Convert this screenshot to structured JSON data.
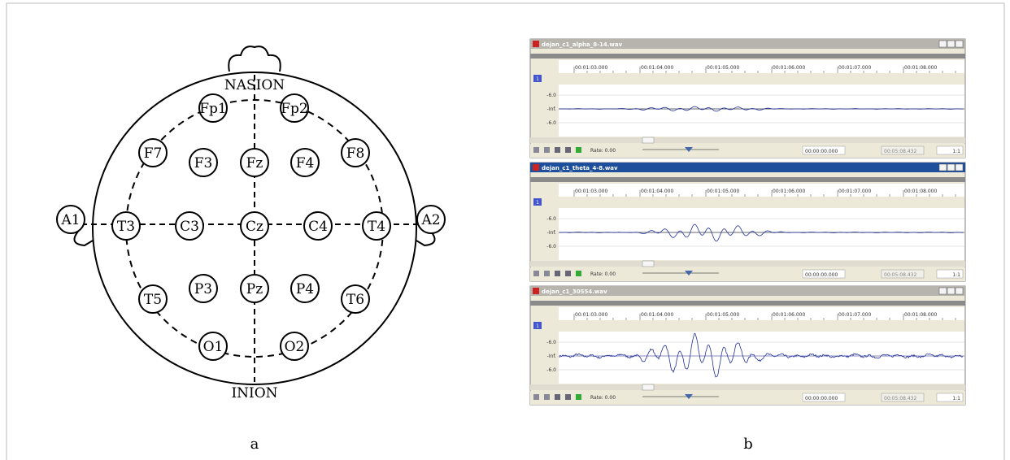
{
  "diagram": {
    "landmarks": {
      "top": "NASION",
      "bottom": "INION"
    },
    "electrodes": [
      "Fp1",
      "Fp2",
      "F7",
      "F3",
      "Fz",
      "F4",
      "F8",
      "A1",
      "T3",
      "C3",
      "Cz",
      "C4",
      "T4",
      "A2",
      "T5",
      "P3",
      "Pz",
      "P4",
      "T6",
      "O1",
      "O2"
    ],
    "caption": "a"
  },
  "screenshot": {
    "caption": "b",
    "windows": [
      {
        "title": "dejan_c1_alpha_8-14.wav",
        "track": "1",
        "time_labels": [
          "00:01:03.000",
          "00:01:04.000",
          "00:01:05.000",
          "00:01:06.000",
          "00:01:07.000",
          "00:01:08.000"
        ],
        "y_labels": [
          "-6.0",
          "-Inf.",
          "-6.0"
        ],
        "rate": "Rate: 0.00",
        "position": "00:00:00.000",
        "length": "00:05:08.432",
        "zoom": "1:1"
      },
      {
        "title": "dejan_c1_theta_4-8.wav",
        "track": "1",
        "time_labels": [
          "00:01:03.000",
          "00:01:04.000",
          "00:01:05.000",
          "00:01:06.000",
          "00:01:07.000",
          "00:01:08.000"
        ],
        "y_labels": [
          "-6.0",
          "-Inf.",
          "-6.0"
        ],
        "rate": "Rate: 0.00",
        "position": "00:00:00.000",
        "length": "00:05:08.432",
        "zoom": "1:1"
      },
      {
        "title": "dejan_c1_30554.wav",
        "track": "1",
        "time_labels": [
          "00:01:03.000",
          "00:01:04.000",
          "00:01:05.000",
          "00:01:06.000",
          "00:01:07.000",
          "00:01:08.000"
        ],
        "y_labels": [
          "-6.0",
          "-Inf.",
          "-6.0"
        ],
        "rate": "Rate: 0.00",
        "position": "00:00:00.000",
        "length": "00:05:08.432",
        "zoom": "1:1"
      }
    ]
  }
}
